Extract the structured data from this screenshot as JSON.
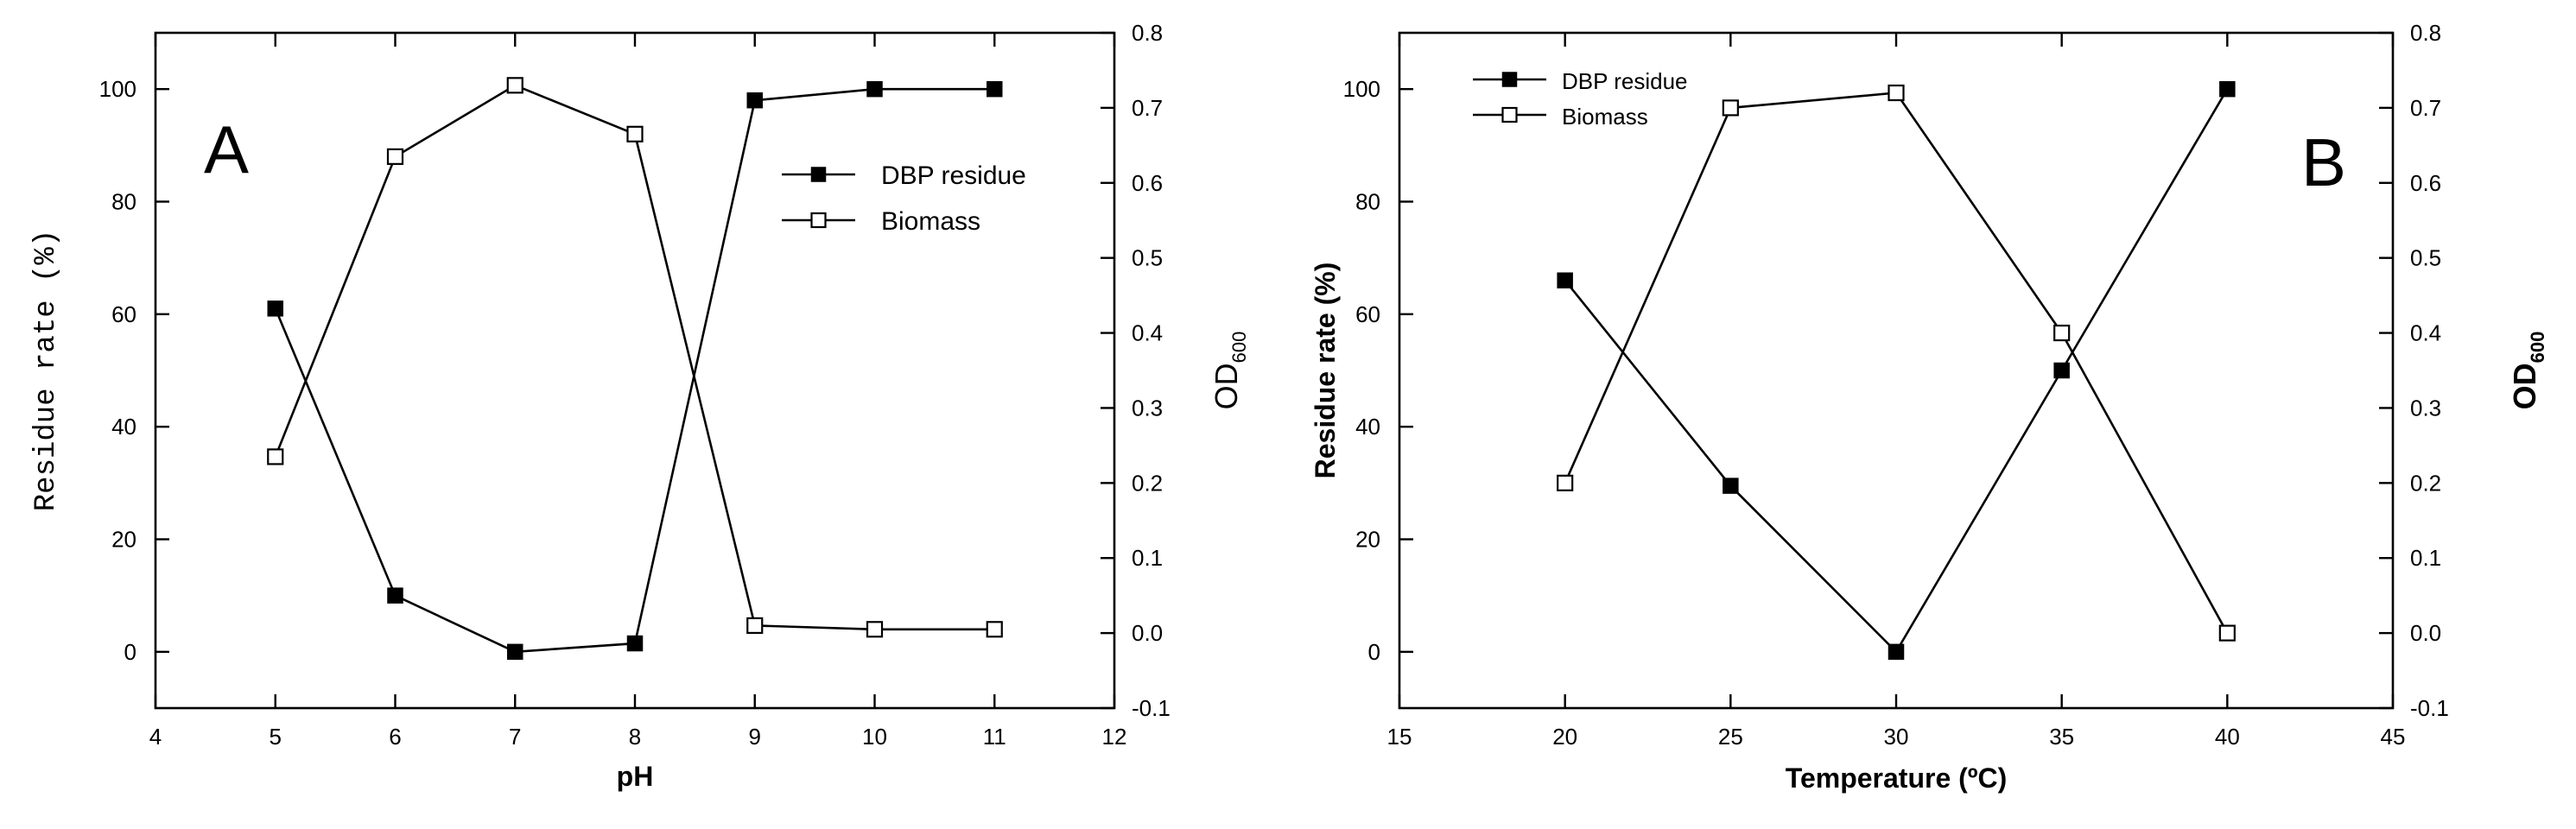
{
  "chart_data": [
    {
      "type": "line",
      "panel_label": "A",
      "xlabel": "pH",
      "ylabel_left": "Residue rate (%)",
      "ylabel_right_main": "OD",
      "ylabel_right_sub": "600",
      "xlim": [
        4,
        12
      ],
      "xticks": [
        "4",
        "5",
        "6",
        "7",
        "8",
        "9",
        "10",
        "11",
        "12"
      ],
      "ylim_left": [
        -10,
        110
      ],
      "yticks_left": [
        "0",
        "20",
        "40",
        "60",
        "80",
        "100"
      ],
      "ylim_right": [
        -0.1,
        0.8
      ],
      "yticks_right": [
        "-0.1",
        "0.0",
        "0.1",
        "0.2",
        "0.3",
        "0.4",
        "0.5",
        "0.6",
        "0.7",
        "0.8"
      ],
      "legend_position": "upper-right",
      "series": [
        {
          "name": "DBP residue",
          "axis": "left",
          "marker": "filled-square",
          "x": [
            5,
            6,
            7,
            8,
            9,
            10,
            11
          ],
          "values": [
            61,
            10,
            0,
            1.5,
            98,
            100,
            100
          ]
        },
        {
          "name": "Biomass",
          "axis": "right",
          "marker": "open-square",
          "x": [
            5,
            6,
            7,
            8,
            9,
            10,
            11
          ],
          "values": [
            0.235,
            0.635,
            0.73,
            0.665,
            0.01,
            0.005,
            0.005
          ]
        }
      ]
    },
    {
      "type": "line",
      "panel_label": "B",
      "xlabel": "Temperature (ºC)",
      "ylabel_left": "Residue rate (%)",
      "ylabel_right_main": "OD",
      "ylabel_right_sub": "600",
      "xlim": [
        15,
        45
      ],
      "xticks": [
        "15",
        "20",
        "25",
        "30",
        "35",
        "40",
        "45"
      ],
      "ylim_left": [
        -10,
        110
      ],
      "yticks_left": [
        "0",
        "20",
        "40",
        "60",
        "80",
        "100"
      ],
      "ylim_right": [
        -0.1,
        0.8
      ],
      "yticks_right": [
        "-0.1",
        "0.0",
        "0.1",
        "0.2",
        "0.3",
        "0.4",
        "0.5",
        "0.6",
        "0.7",
        "0.8"
      ],
      "legend_position": "upper-left",
      "series": [
        {
          "name": "DBP residue",
          "axis": "left",
          "marker": "filled-square",
          "x": [
            20,
            25,
            30,
            35,
            40
          ],
          "values": [
            66,
            29.5,
            0,
            50,
            100
          ]
        },
        {
          "name": "Biomass",
          "axis": "right",
          "marker": "open-square",
          "x": [
            20,
            25,
            30,
            35,
            40
          ],
          "values": [
            0.2,
            0.7,
            0.72,
            0.4,
            0.0
          ]
        }
      ]
    }
  ]
}
